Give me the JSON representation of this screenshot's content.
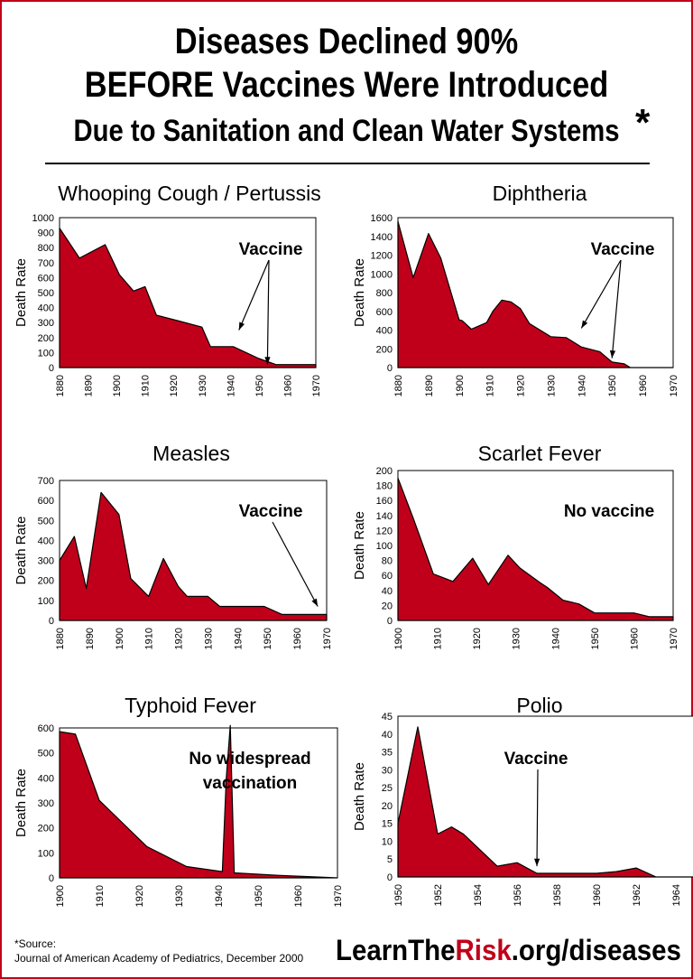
{
  "header": {
    "line1": "Diseases Declined 90%",
    "line2": "BEFORE Vaccines Were Introduced",
    "line3": "Due to Sanitation and Clean Water Systems",
    "asterisk": "*"
  },
  "footer": {
    "source_label": "*Source:",
    "source_text": "Journal of American Academy of Pediatrics, December 2000",
    "site_prefix": "LearnThe",
    "site_highlight": "Risk",
    "site_suffix": ".org/diseases"
  },
  "colors": {
    "fill": "#c0001a",
    "frame": "#c0001a"
  },
  "chart_data": [
    {
      "type": "area",
      "title": "Whooping Cough / Pertussis",
      "ylabel": "Death Rate",
      "xlim": [
        1880,
        1970
      ],
      "ylim": [
        0,
        1000
      ],
      "xticks": [
        1880,
        1890,
        1900,
        1910,
        1920,
        1930,
        1940,
        1950,
        1960,
        1970
      ],
      "yticks": [
        0,
        100,
        200,
        300,
        400,
        500,
        600,
        700,
        800,
        900,
        1000
      ],
      "x": [
        1880,
        1887,
        1896,
        1901,
        1906,
        1910,
        1914,
        1922,
        1930,
        1933,
        1941,
        1950,
        1956,
        1970
      ],
      "y": [
        930,
        730,
        820,
        620,
        510,
        540,
        350,
        310,
        270,
        140,
        140,
        60,
        20,
        20
      ],
      "annotation": "Vaccine",
      "arrow_targets": [
        [
          1943,
          250
        ],
        [
          1953,
          20
        ]
      ]
    },
    {
      "type": "area",
      "title": "Diphtheria",
      "ylabel": "Death Rate",
      "xlim": [
        1880,
        1970
      ],
      "ylim": [
        0,
        1600
      ],
      "xticks": [
        1880,
        1890,
        1900,
        1910,
        1920,
        1930,
        1940,
        1950,
        1960,
        1970
      ],
      "yticks": [
        0,
        200,
        400,
        600,
        800,
        1000,
        1200,
        1400,
        1600
      ],
      "x": [
        1880,
        1885,
        1890,
        1894,
        1900,
        1901,
        1904,
        1909,
        1911,
        1914,
        1917,
        1920,
        1923,
        1930,
        1935,
        1940,
        1946,
        1950,
        1954,
        1956,
        1970
      ],
      "y": [
        1560,
        960,
        1430,
        1170,
        510,
        500,
        410,
        480,
        600,
        720,
        700,
        630,
        470,
        330,
        320,
        220,
        170,
        60,
        40,
        0,
        0
      ],
      "annotation": "Vaccine",
      "arrow_targets": [
        [
          1940,
          420
        ],
        [
          1950,
          100
        ]
      ]
    },
    {
      "type": "area",
      "title": "Measles",
      "ylabel": "Death Rate",
      "xlim": [
        1880,
        1970
      ],
      "ylim": [
        0,
        700
      ],
      "xticks": [
        1880,
        1890,
        1900,
        1910,
        1920,
        1930,
        1940,
        1950,
        1960,
        1970
      ],
      "yticks": [
        0,
        100,
        200,
        300,
        400,
        500,
        600,
        700
      ],
      "x": [
        1880,
        1885,
        1889,
        1894,
        1900,
        1904,
        1910,
        1915,
        1920,
        1923,
        1930,
        1934,
        1949,
        1955,
        1970
      ],
      "y": [
        300,
        420,
        160,
        640,
        530,
        210,
        120,
        310,
        170,
        120,
        120,
        70,
        70,
        30,
        30
      ],
      "annotation": "Vaccine",
      "arrow_targets": [
        [
          1967,
          70
        ]
      ]
    },
    {
      "type": "area",
      "title": "Scarlet Fever",
      "ylabel": "Death Rate",
      "xlim": [
        1900,
        1970
      ],
      "ylim": [
        0,
        200
      ],
      "xticks": [
        1900,
        1910,
        1920,
        1930,
        1940,
        1950,
        1960,
        1970
      ],
      "yticks": [
        0,
        20,
        40,
        60,
        80,
        100,
        120,
        140,
        160,
        180,
        200
      ],
      "x": [
        1900,
        1904,
        1909,
        1914,
        1919,
        1923,
        1928,
        1931,
        1936,
        1938,
        1942,
        1946,
        1950,
        1956,
        1960,
        1964,
        1970
      ],
      "y": [
        190,
        135,
        62,
        52,
        83,
        48,
        87,
        70,
        51,
        44,
        27,
        22,
        10,
        10,
        10,
        5,
        5
      ],
      "annotation": "No vaccine"
    },
    {
      "type": "area",
      "title": "Typhoid Fever",
      "ylabel": "Death Rate",
      "xlim": [
        1900,
        1970
      ],
      "ylim": [
        0,
        600
      ],
      "xticks": [
        1900,
        1910,
        1920,
        1930,
        1940,
        1950,
        1960,
        1970
      ],
      "yticks": [
        0,
        100,
        200,
        300,
        400,
        500,
        600
      ],
      "x": [
        1900,
        1904,
        1910,
        1922,
        1932,
        1941,
        1942,
        1943,
        1944,
        1955,
        1970
      ],
      "y": [
        585,
        575,
        310,
        125,
        45,
        25,
        400,
        610,
        20,
        10,
        0
      ],
      "annotation": "No widespread vaccination"
    },
    {
      "type": "area",
      "title": "Polio",
      "ylabel": "Death Rate",
      "xlim": [
        1950,
        1965
      ],
      "ylim": [
        0,
        45
      ],
      "xticks": [
        1950,
        1952,
        1954,
        1956,
        1958,
        1960,
        1962,
        1964
      ],
      "yticks": [
        0,
        5,
        10,
        15,
        20,
        25,
        30,
        35,
        40,
        45
      ],
      "x": [
        1950,
        1951,
        1952,
        1952.7,
        1953.3,
        1955,
        1956,
        1957,
        1958,
        1960,
        1961,
        1962,
        1963,
        1965
      ],
      "y": [
        15,
        42,
        12,
        14,
        12,
        3,
        4,
        1,
        1,
        1,
        1.5,
        2.5,
        0,
        0
      ],
      "annotation": "Vaccine",
      "arrow_targets": [
        [
          1957,
          3
        ]
      ]
    }
  ]
}
